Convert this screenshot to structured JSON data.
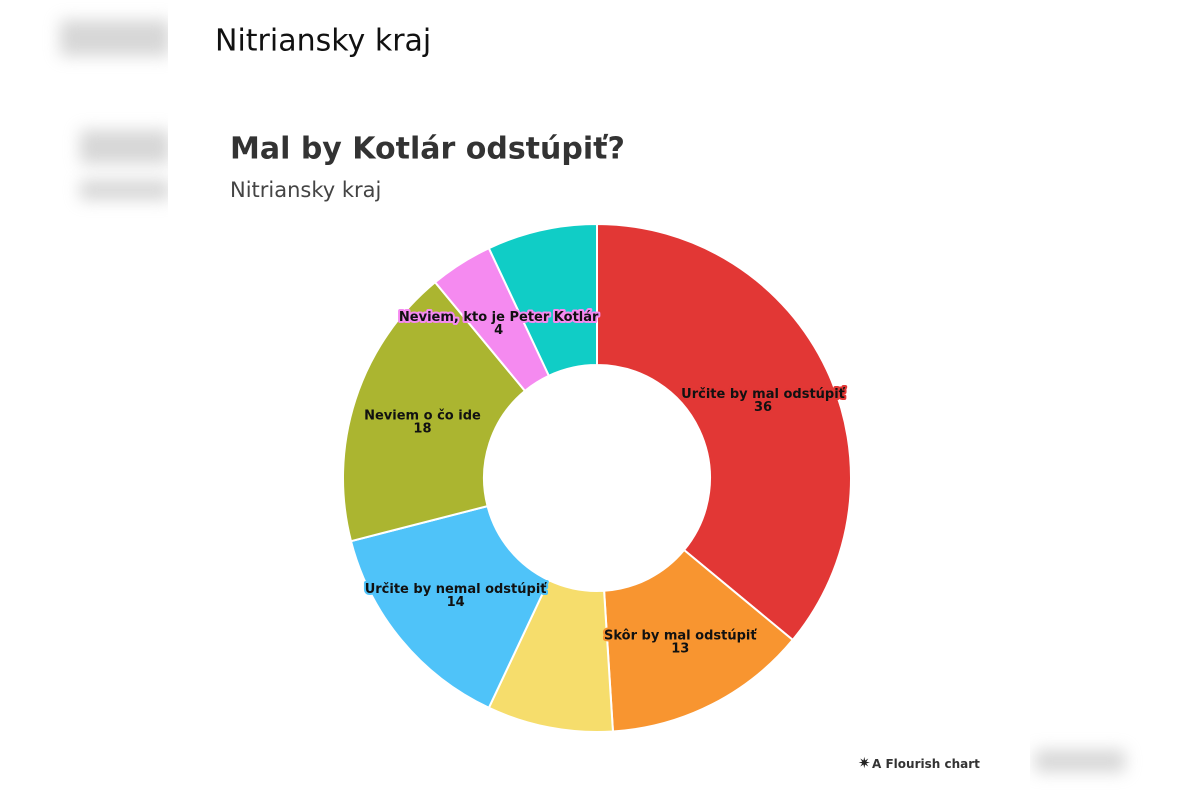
{
  "header": {
    "title": "Nitriansky kraj"
  },
  "chart_data": {
    "type": "donut",
    "title": "Mal by Kotlár odstúpiť?",
    "subtitle": "Nitriansky kraj",
    "categories": [
      "Určite by mal odstúpiť",
      "Skôr by mal odstúpiť",
      null,
      "Určite by nemal odstúpiť",
      "Neviem o čo ide",
      "Neviem, kto je Peter Kotlár",
      null
    ],
    "values": [
      36,
      13,
      8,
      14,
      18,
      4,
      7
    ],
    "colors": [
      "#e23735",
      "#f89530",
      "#f6dd6c",
      "#4fc3f9",
      "#abb530",
      "#f58af0",
      "#10cdc6"
    ]
  },
  "footer": {
    "credit": "A Flourish chart"
  }
}
